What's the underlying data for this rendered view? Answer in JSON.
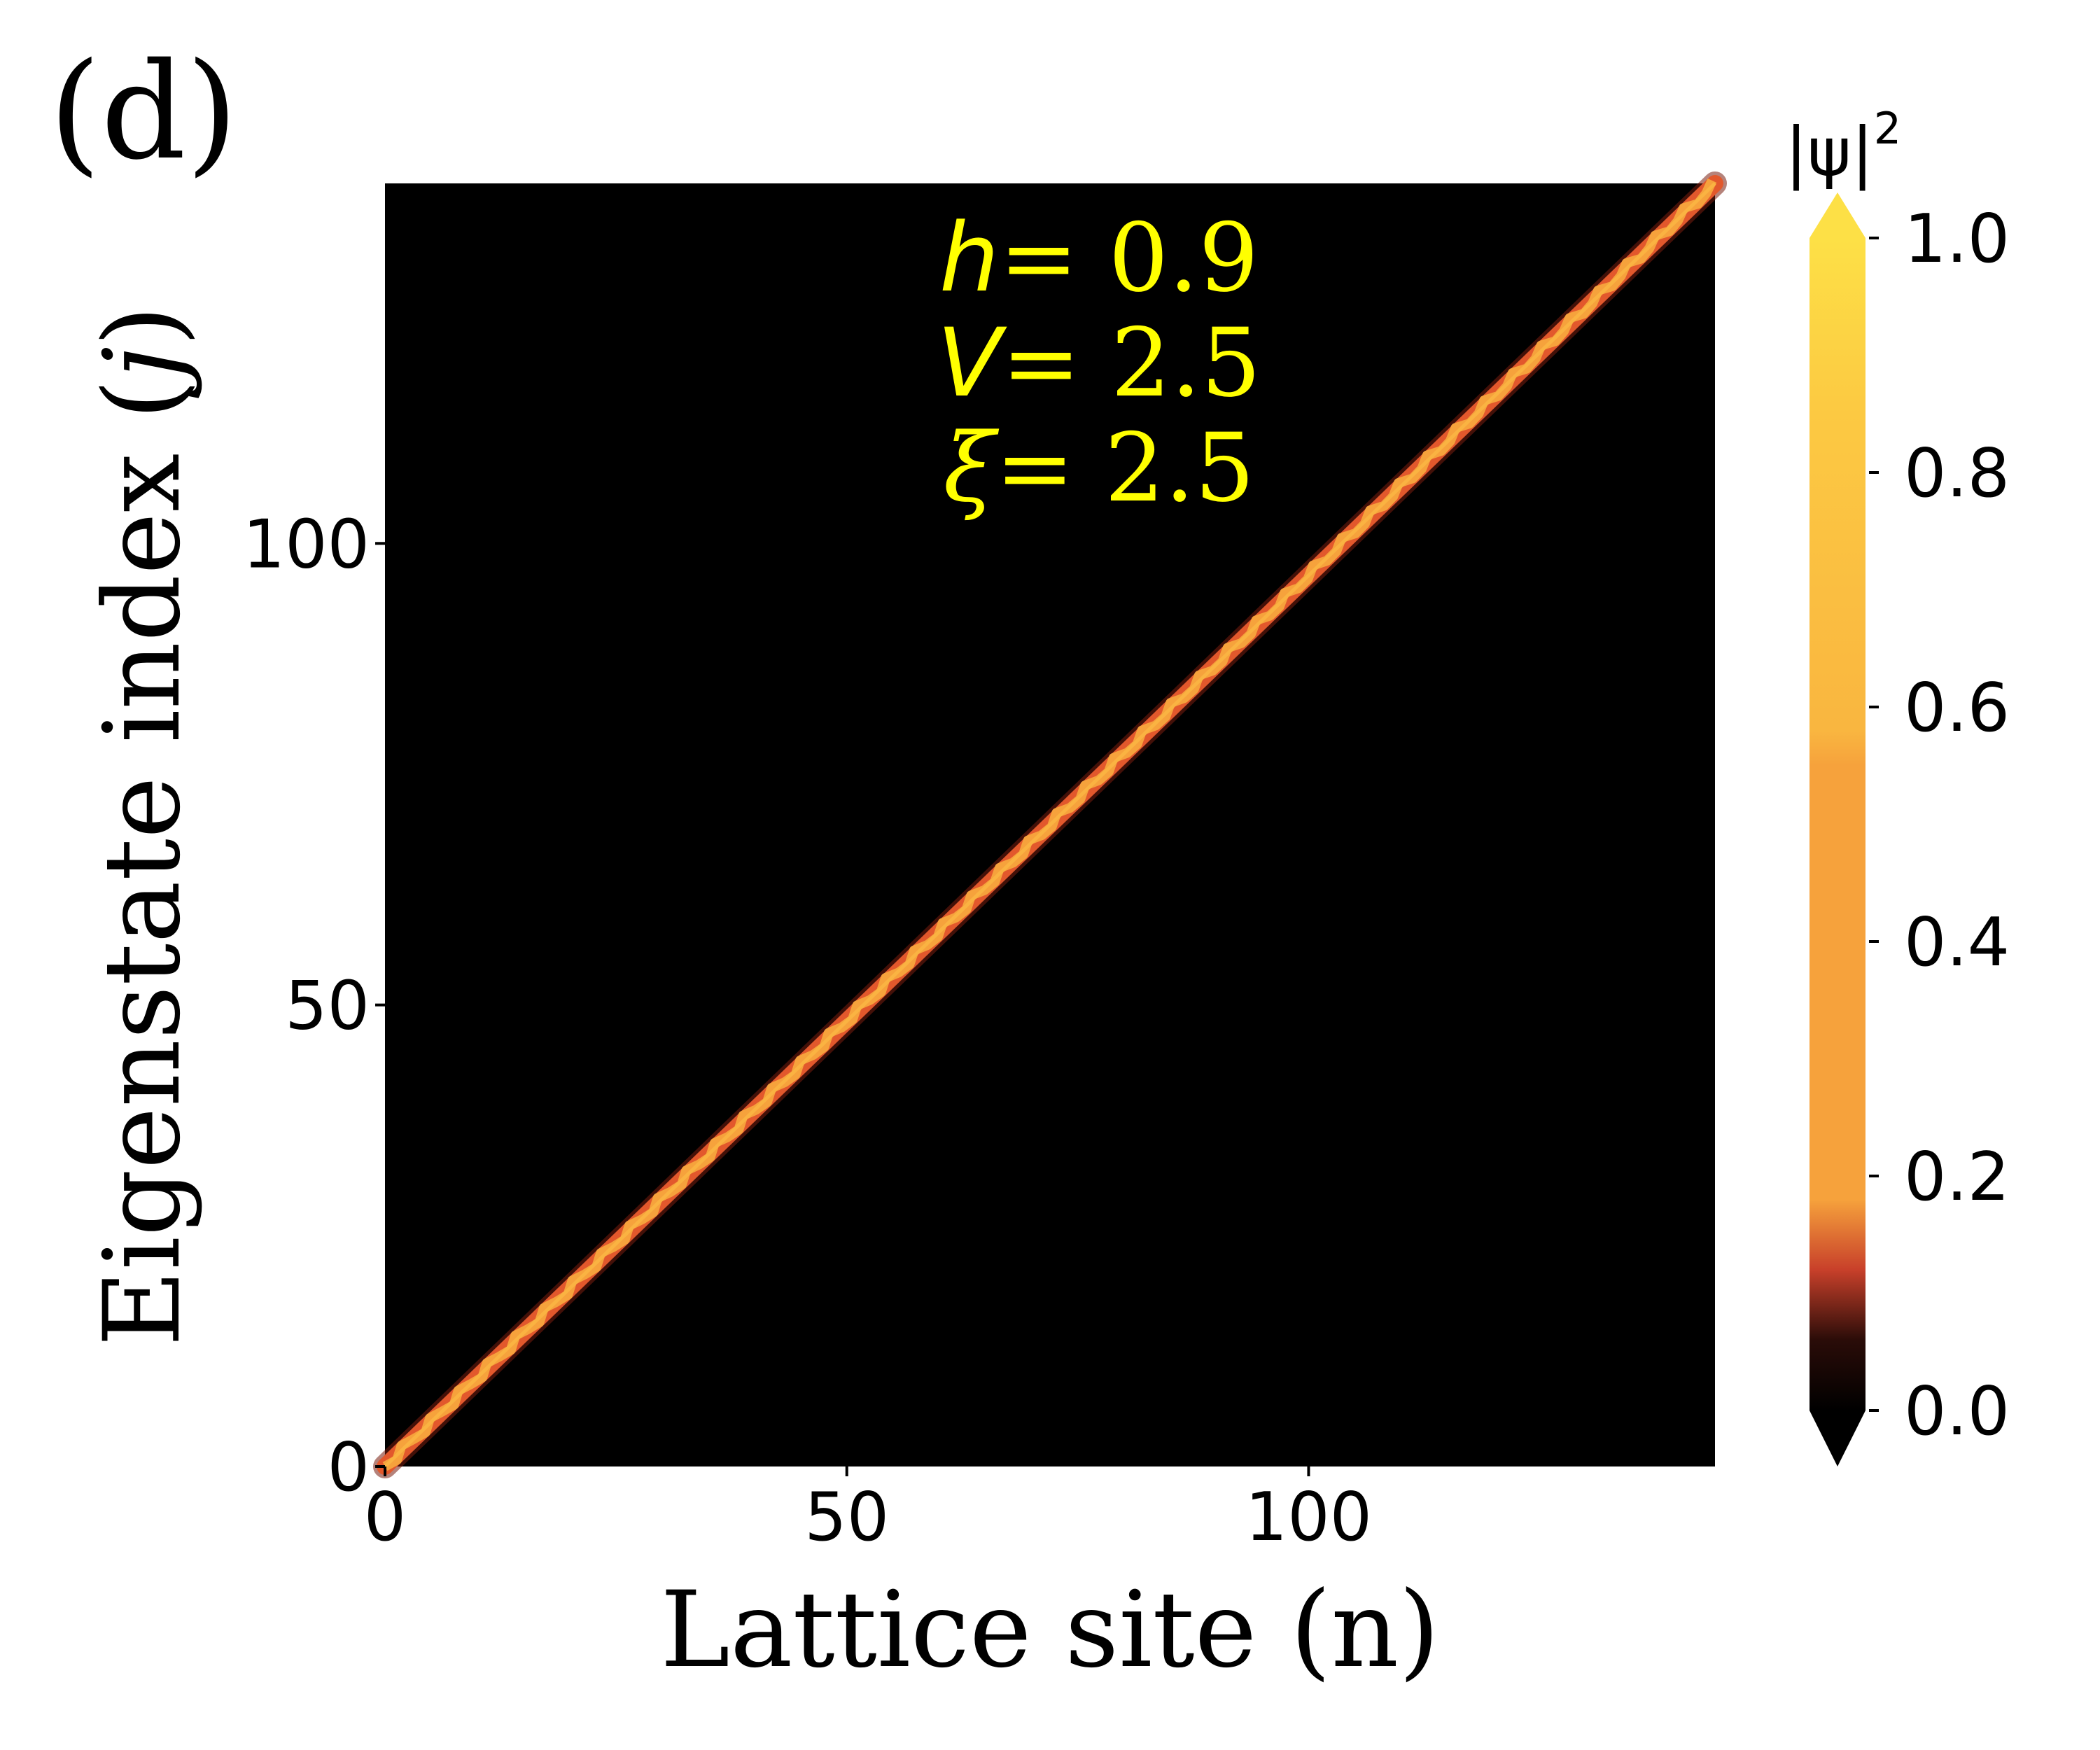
{
  "panel_label": "(d)",
  "chart_data": {
    "type": "heatmap",
    "title": "",
    "xlabel": "Lattice site (n)",
    "ylabel_prefix": "Eigenstate index (",
    "ylabel_var": "j",
    "ylabel_suffix": ")",
    "xlim": [
      0,
      144
    ],
    "ylim": [
      0,
      139
    ],
    "xticks": [
      0,
      50,
      100
    ],
    "yticks": [
      0,
      50,
      100
    ],
    "diagonal": {
      "from": [
        0,
        0
      ],
      "to": [
        144,
        139
      ],
      "peak_value": 0.6,
      "description": "localized eigenstates along diagonal n ≈ j"
    },
    "annotations": [
      {
        "var": "h",
        "text": "= 0.9"
      },
      {
        "var": "V",
        "text": "= 2.5"
      },
      {
        "var": "ξ",
        "text": "= 2.5"
      }
    ],
    "colorbar": {
      "label": "|ψ|",
      "label_exp": "2",
      "range": [
        0.0,
        1.0
      ],
      "ticks": [
        "0.0",
        "0.2",
        "0.4",
        "0.6",
        "0.8",
        "1.0"
      ],
      "extend": "both",
      "colors": {
        "low": "#000000",
        "mid_low": "#c8402a",
        "mid": "#f6a23c",
        "high": "#fde046"
      }
    },
    "annotation_color": "#ffff00"
  }
}
